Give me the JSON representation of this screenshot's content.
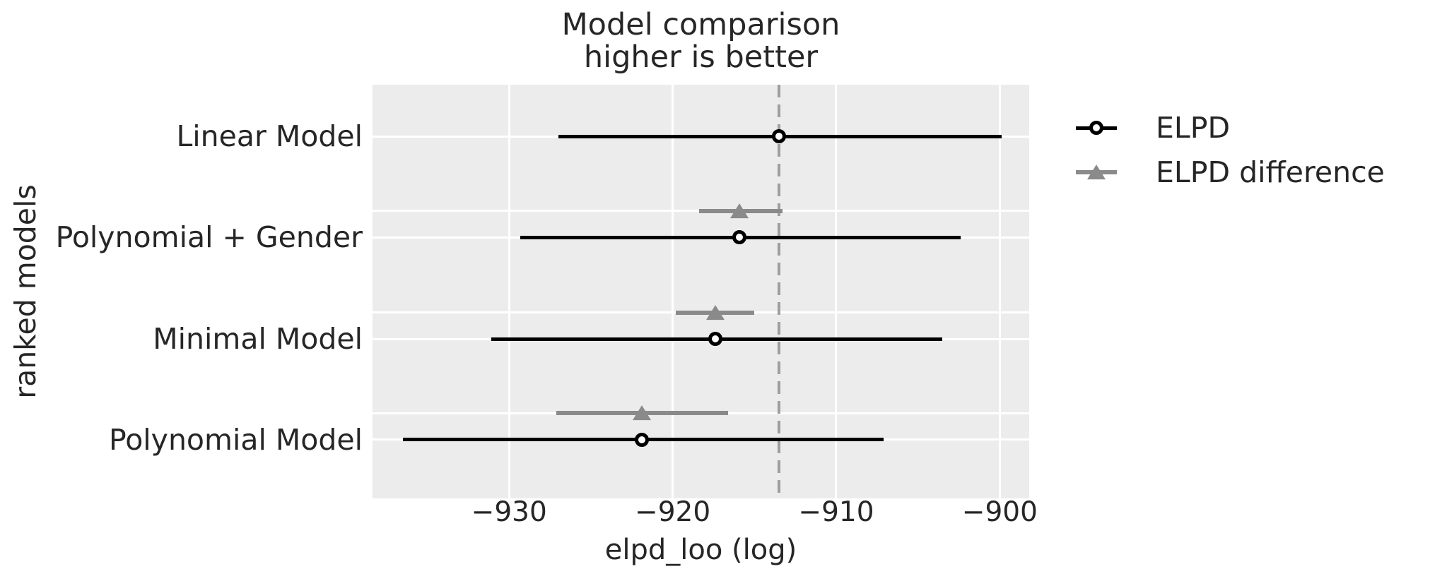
{
  "figure": {
    "title_lines": [
      "Model comparison",
      "higher is better"
    ],
    "xlabel": "elpd_loo (log)",
    "ylabel": "ranked models"
  },
  "legend": {
    "items": [
      {
        "label": "ELPD",
        "marker": "open-circle-icon",
        "color": "#000000"
      },
      {
        "label": "ELPD difference",
        "marker": "triangle-icon",
        "color": "#8a8a8a"
      }
    ]
  },
  "chart_data": {
    "type": "scatter",
    "variant": "horizontal errorbar forest plot (model comparison)",
    "title": "Model comparison\nhigher is better",
    "xlabel": "elpd_loo (log)",
    "ylabel": "ranked models",
    "xlim": [
      -938.35,
      -898.2
    ],
    "xticks": [
      -930,
      -920,
      -910,
      -900
    ],
    "xtick_labels": [
      "−930",
      "−920",
      "−910",
      "−900"
    ],
    "categories": [
      "Linear Model",
      "Polynomial + Gender",
      "Minimal Model",
      "Polynomial Model"
    ],
    "series": [
      {
        "name": "ELPD",
        "marker": "open-circle",
        "color": "#000000",
        "values": [
          -913.5,
          -915.9,
          -917.4,
          -921.9
        ],
        "error_low": [
          -927.0,
          -929.3,
          -931.1,
          -936.5
        ],
        "error_high": [
          -899.9,
          -902.4,
          -903.5,
          -907.1
        ]
      },
      {
        "name": "ELPD difference",
        "marker": "triangle",
        "color": "#8a8a8a",
        "values": [
          null,
          -915.9,
          -917.4,
          -921.9
        ],
        "error_low": [
          null,
          -918.4,
          -919.8,
          -927.1
        ],
        "error_high": [
          null,
          -913.3,
          -915.0,
          -916.6
        ]
      }
    ],
    "vline": {
      "value": -913.5,
      "style": "dashed",
      "color": "#9e9e9e"
    },
    "grid": true,
    "legend_position": "outside upper right",
    "plot_bg": "#ececec",
    "grid_color": "#ffffff",
    "text_color": "#262626"
  }
}
